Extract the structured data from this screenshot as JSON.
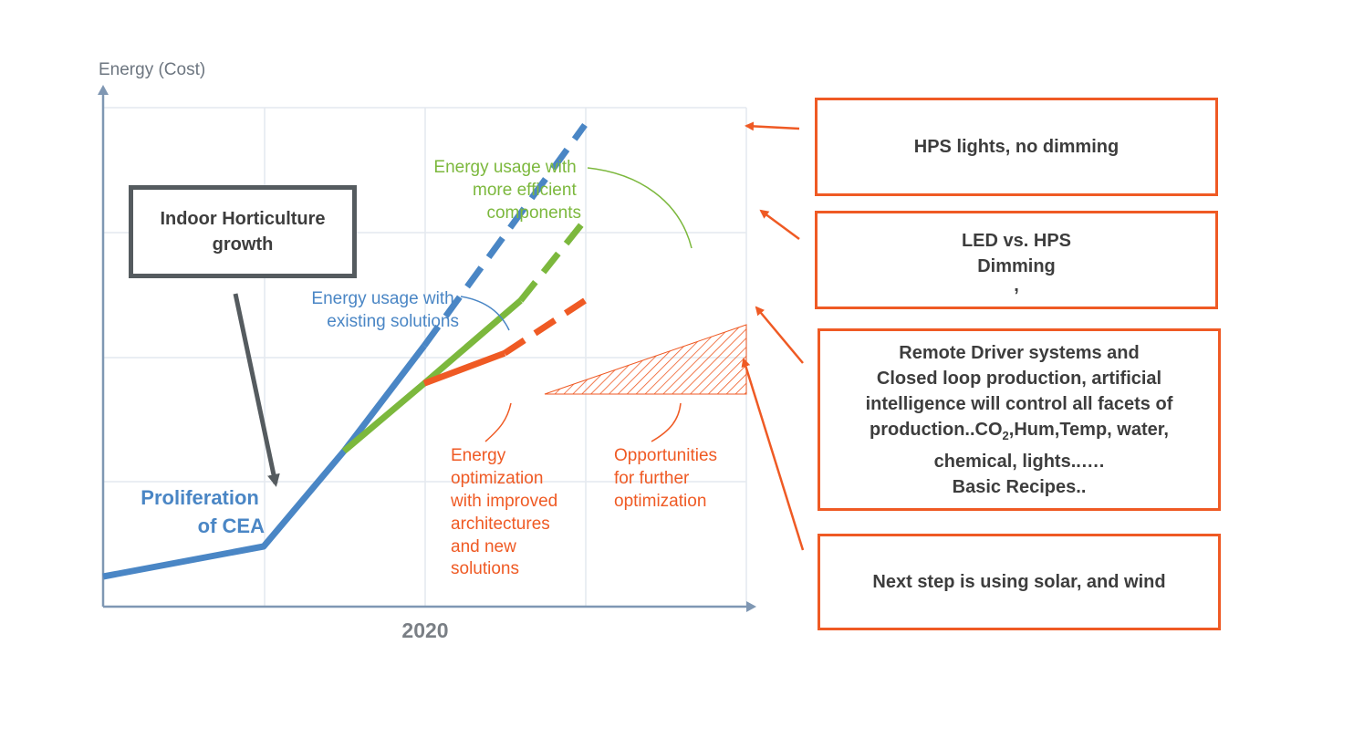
{
  "chart_data": {
    "type": "line",
    "title": "",
    "ylabel": "Energy (Cost)",
    "xlabel": "",
    "x_tick_labels": [
      "2020"
    ],
    "grid": true,
    "series": [
      {
        "name": "Energy usage with existing solutions",
        "color": "#4a86c5",
        "solid": [
          [
            0,
            0.6
          ],
          [
            1,
            1.2
          ],
          [
            1.5,
            3.1
          ],
          [
            2,
            5.2
          ]
        ],
        "dashed": [
          [
            2,
            5.2
          ],
          [
            3,
            9.6
          ]
        ]
      },
      {
        "name": "Energy usage with more efficient components",
        "color": "#7cb83d",
        "solid": [
          [
            1.5,
            3.1
          ],
          [
            2,
            4.45
          ],
          [
            2.6,
            6.1
          ]
        ],
        "dashed": [
          [
            2.6,
            6.1
          ],
          [
            3,
            7.7
          ]
        ]
      },
      {
        "name": "Energy optimization with improved architectures and new solutions",
        "color": "#ef5a24",
        "solid": [
          [
            2,
            4.45
          ],
          [
            2.5,
            5.05
          ]
        ],
        "dashed": [
          [
            2.5,
            5.05
          ],
          [
            3,
            6.1
          ]
        ]
      }
    ],
    "annotations": {
      "existing": [
        "Energy usage with",
        "existing solutions"
      ],
      "efficient": [
        "Energy usage with",
        "more efficient",
        "components"
      ],
      "optimization": [
        "Energy",
        "optimization",
        "with improved",
        "architectures",
        "and new",
        "solutions"
      ],
      "opportunities": [
        "Opportunities",
        "for further",
        "optimization"
      ],
      "proliferation": [
        "Proliferation",
        "of CEA"
      ]
    }
  },
  "indoor_box": {
    "lines": [
      "Indoor Horticulture",
      "growth"
    ]
  },
  "callouts": [
    {
      "lines": [
        "HPS lights, no dimming"
      ]
    },
    {
      "lines": [
        "LED vs. HPS",
        "Dimming",
        ","
      ]
    },
    {
      "lines": [
        "Remote Driver systems and",
        "Closed loop production, artificial",
        "intelligence  will control all facets of",
        "production..",
        "CO",
        "2",
        ",Hum,Temp, water,",
        "chemical, lights..….",
        "Basic Recipes.."
      ]
    },
    {
      "lines": [
        "Next step is using solar, and wind"
      ]
    }
  ],
  "colors": {
    "blue": "#4a86c5",
    "green": "#7cb83d",
    "orange": "#ef5a24",
    "gray": "#555b5f",
    "axis": "#7f97b3"
  }
}
